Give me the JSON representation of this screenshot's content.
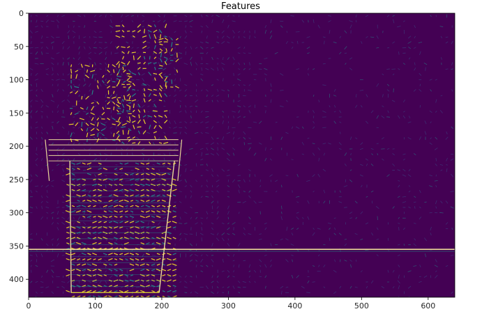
{
  "chart_data": {
    "type": "heatmap",
    "title": "Features",
    "xlabel": "",
    "ylabel": "",
    "xlim": [
      0,
      640
    ],
    "ylim": [
      427,
      0
    ],
    "x_ticks": [
      0,
      100,
      200,
      300,
      400,
      500,
      600
    ],
    "y_ticks": [
      0,
      50,
      100,
      150,
      200,
      250,
      300,
      350,
      400
    ],
    "grid": false,
    "legend": "none",
    "colormap": "viridis",
    "colors": {
      "background": "#440154",
      "low": "#3b528b",
      "mid": "#21918c",
      "high": "#fde725",
      "edge": "#fdf0a0"
    },
    "features": [
      {
        "name": "cactus stem",
        "x": [
          130,
          205
        ],
        "y": [
          15,
          195
        ]
      },
      {
        "name": "cactus left arm",
        "x": [
          60,
          150
        ],
        "y": [
          75,
          195
        ]
      },
      {
        "name": "cactus right spine",
        "x": [
          195,
          220
        ],
        "y": [
          35,
          115
        ]
      },
      {
        "name": "pot rim",
        "x": [
          25,
          230
        ],
        "y": [
          190,
          222
        ]
      },
      {
        "name": "pot body",
        "x": [
          55,
          220
        ],
        "y": [
          222,
          425
        ]
      },
      {
        "name": "table edge",
        "y": 355
      }
    ]
  }
}
